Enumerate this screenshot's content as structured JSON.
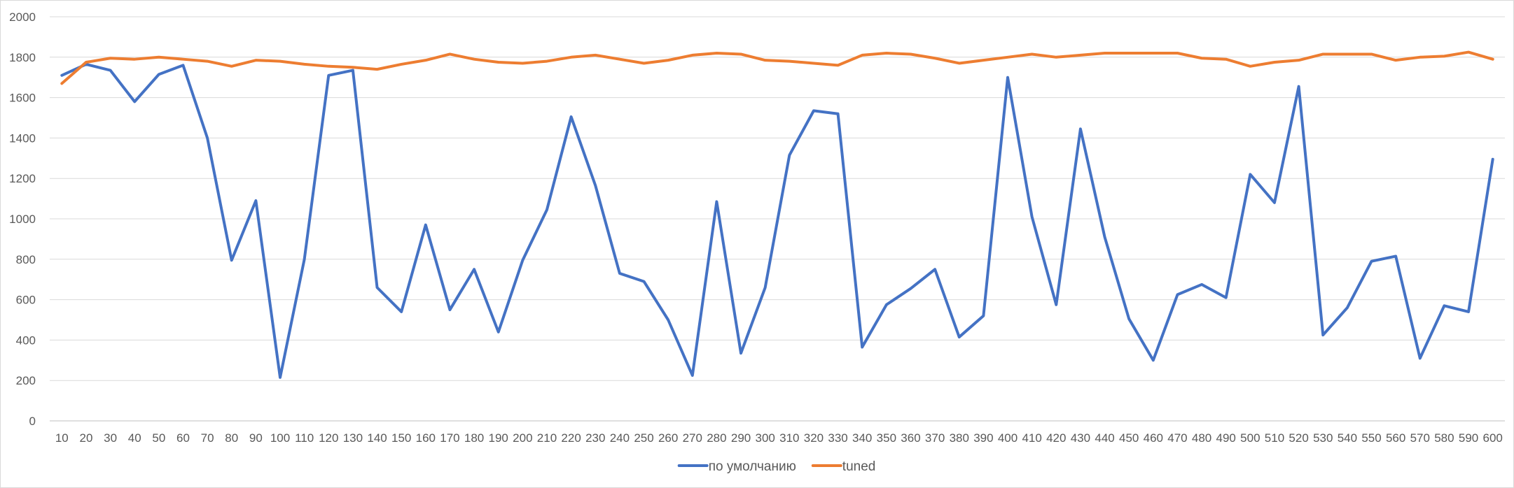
{
  "chart_data": {
    "type": "line",
    "title": "",
    "xlabel": "",
    "ylabel": "",
    "x": [
      10,
      20,
      30,
      40,
      50,
      60,
      70,
      80,
      90,
      100,
      110,
      120,
      130,
      140,
      150,
      160,
      170,
      180,
      190,
      200,
      210,
      220,
      230,
      240,
      250,
      260,
      270,
      280,
      290,
      300,
      310,
      320,
      330,
      340,
      350,
      360,
      370,
      380,
      390,
      400,
      410,
      420,
      430,
      440,
      450,
      460,
      470,
      480,
      490,
      500,
      510,
      520,
      530,
      540,
      550,
      560,
      570,
      580,
      590,
      600
    ],
    "ylim": [
      0,
      2000
    ],
    "yticks": [
      0,
      200,
      400,
      600,
      800,
      1000,
      1200,
      1400,
      1600,
      1800,
      2000
    ],
    "grid": true,
    "legend_position": "bottom",
    "series": [
      {
        "name": "по умолчанию",
        "color": "#4472c4",
        "values": [
          1710,
          1765,
          1735,
          1580,
          1715,
          1760,
          1400,
          795,
          1090,
          215,
          800,
          1710,
          1735,
          660,
          540,
          970,
          550,
          750,
          440,
          795,
          1045,
          1505,
          1165,
          730,
          690,
          500,
          225,
          1085,
          335,
          660,
          1315,
          1535,
          1520,
          365,
          575,
          655,
          750,
          415,
          520,
          1700,
          1010,
          575,
          1445,
          910,
          505,
          300,
          625,
          675,
          610,
          1220,
          1080,
          1655,
          425,
          560,
          790,
          815,
          310,
          570,
          540,
          1295
        ]
      },
      {
        "name": "tuned",
        "color": "#ed7d31",
        "values": [
          1670,
          1775,
          1795,
          1790,
          1800,
          1790,
          1780,
          1755,
          1785,
          1780,
          1765,
          1755,
          1750,
          1740,
          1765,
          1785,
          1815,
          1790,
          1775,
          1770,
          1780,
          1800,
          1810,
          1790,
          1770,
          1785,
          1810,
          1820,
          1815,
          1785,
          1780,
          1770,
          1760,
          1810,
          1820,
          1815,
          1795,
          1770,
          1785,
          1800,
          1815,
          1800,
          1810,
          1820,
          1820,
          1820,
          1820,
          1795,
          1790,
          1755,
          1775,
          1785,
          1815,
          1815,
          1815,
          1785,
          1800,
          1805,
          1825,
          1790
        ]
      }
    ]
  }
}
